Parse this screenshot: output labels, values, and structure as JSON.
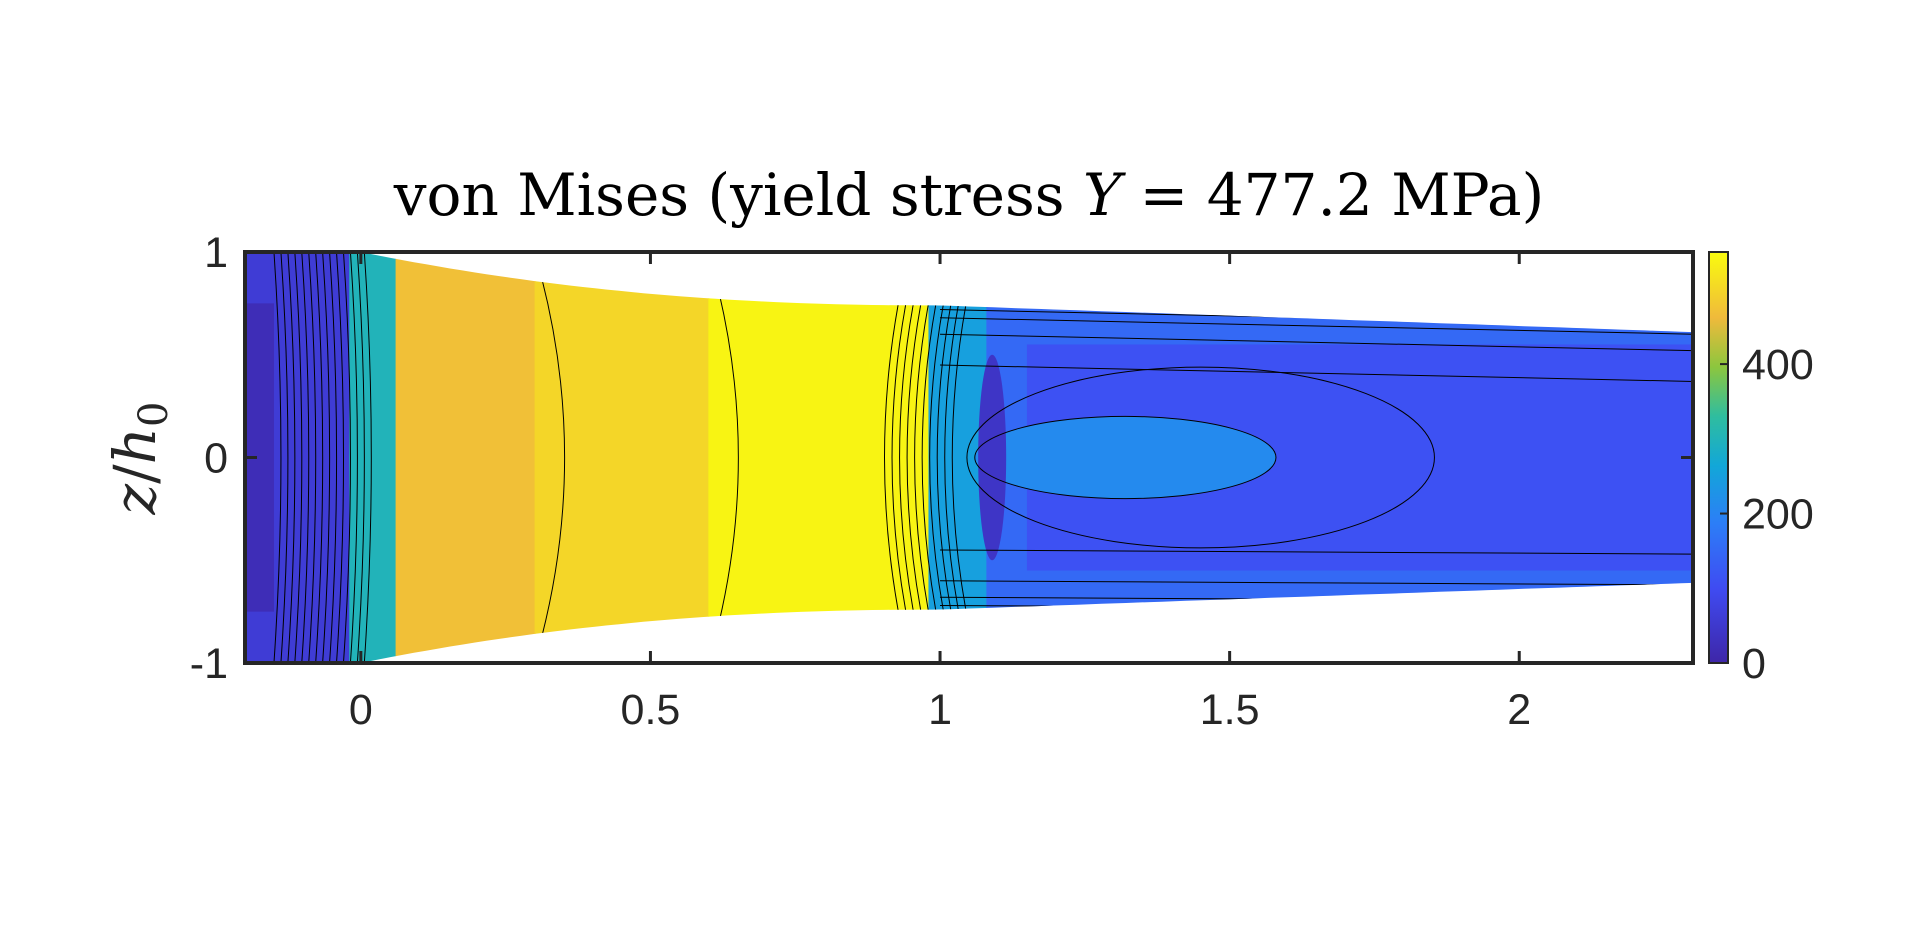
{
  "chart_data": {
    "type": "heatmap",
    "title": "von Mises (yield stress Y = 477.2 MPa)",
    "title_parts": {
      "prefix": "von Mises (yield stress ",
      "symbol": "Y",
      "equals": " = ",
      "value": "477.2",
      "unit": " MPa)"
    },
    "xlabel": "",
    "ylabel": "z/h0",
    "ylabel_parts": {
      "num": "z",
      "slash": "/",
      "den": "h",
      "sub": "0"
    },
    "xlim": [
      -0.2,
      2.3
    ],
    "ylim": [
      -1,
      1
    ],
    "xticks": [
      0,
      0.5,
      1,
      1.5,
      2
    ],
    "xtick_labels": [
      "0",
      "0.5",
      "1",
      "1.5",
      "2"
    ],
    "yticks": [
      -1,
      0,
      1
    ],
    "ytick_labels": [
      "-1",
      "0",
      "1"
    ],
    "colorbar": {
      "colormap": "parula",
      "clim": [
        0,
        550
      ],
      "ticks": [
        0,
        200,
        400
      ],
      "tick_labels": [
        "0",
        "200",
        "400"
      ]
    },
    "regions": [
      {
        "x_from": -0.2,
        "x_to": -0.02,
        "level": 60
      },
      {
        "x_from": -0.02,
        "x_to": 0.06,
        "level": 300
      },
      {
        "x_from": 0.06,
        "x_to": 0.3,
        "level": 470
      },
      {
        "x_from": 0.3,
        "x_to": 0.6,
        "level": 500
      },
      {
        "x_from": 0.6,
        "x_to": 0.98,
        "level": 540
      },
      {
        "x_from": 0.98,
        "x_to": 1.08,
        "level": 250
      },
      {
        "x_from": 1.08,
        "x_to": 2.3,
        "level": 150
      }
    ],
    "shape_note": "domain is bounded by a die profile: full height |z/h0|=1 up to x=0, narrowing to about 0.74 near x=1"
  }
}
